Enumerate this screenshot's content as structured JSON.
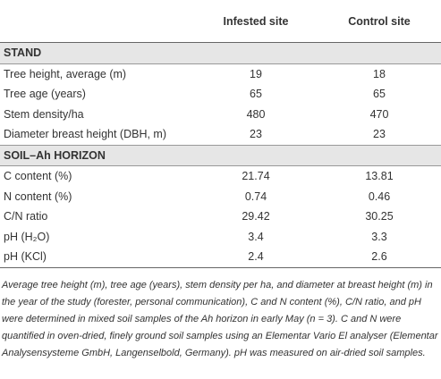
{
  "table": {
    "header": [
      "",
      "Infested site",
      "Control site"
    ],
    "sections": [
      {
        "title": "STAND",
        "rows": [
          [
            "Tree height, average (m)",
            "19",
            "18"
          ],
          [
            "Tree age (years)",
            "65",
            "65"
          ],
          [
            "Stem density/ha",
            "480",
            "470"
          ],
          [
            "Diameter breast height (DBH, m)",
            "23",
            "23"
          ]
        ]
      },
      {
        "title": "SOIL–Ah HORIZON",
        "rows": [
          [
            "C content (%)",
            "21.74",
            "13.81"
          ],
          [
            "N content (%)",
            "0.74",
            "0.46"
          ],
          [
            "C/N ratio",
            "29.42",
            "30.25"
          ],
          [
            "pH (H₂O)",
            "3.4",
            "3.3"
          ],
          [
            "pH (KCl)",
            "2.4",
            "2.6"
          ]
        ]
      }
    ]
  },
  "caption": "Average tree height (m), tree age (years), stem density per ha, and diameter at breast height (m) in the year of the study (forester, personal communication), C and N content (%), C/N ratio, and pH were determined in mixed soil samples of the Ah horizon in early May (n = 3). C and N were quantified in oven-dried, finely ground soil samples using an Elementar Vario El analyser (Elementar Analysensysteme GmbH, Langenselbold, Germany). pH was measured on air-dried soil samples."
}
